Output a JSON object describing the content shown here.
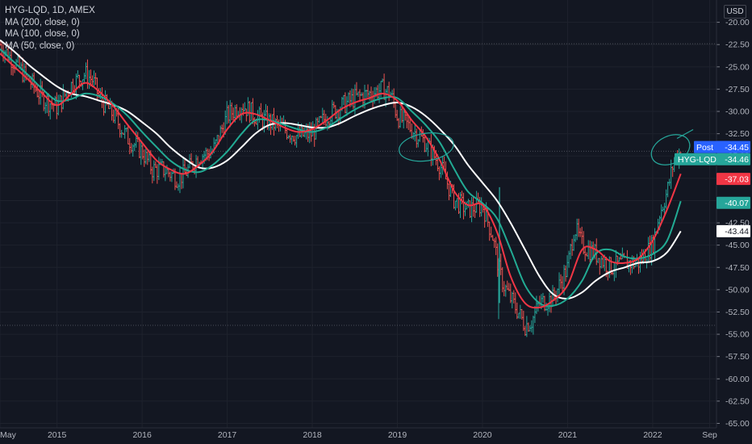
{
  "header": {
    "symbol_line": "HYG-LQD, 1D, AMEX",
    "indicators": [
      "MA (200, close, 0)",
      "MA (100, close, 0)",
      "MA (50, close, 0)"
    ]
  },
  "currency": "USD",
  "price_tags": {
    "post": {
      "label": "Post",
      "value": "-34.45",
      "color": "#2962ff"
    },
    "symbol": {
      "label": "HYG-LQD",
      "value": "-34.46",
      "color": "#26a69a"
    },
    "ma50": {
      "value": "-37.03",
      "color": "#f23645"
    },
    "ma100": {
      "value": "-40.07",
      "color": "#26a69a"
    },
    "ma200": {
      "value": "-43.44",
      "color": "#ffffff"
    }
  },
  "colors": {
    "up": "#26a69a",
    "down": "#ef5350",
    "ma50": "#f23645",
    "ma100": "#22ab94",
    "ma200": "#ffffff",
    "annotation": "#26a69a",
    "background": "#131722",
    "grid": "#1e222d"
  },
  "chart_data": {
    "type": "line",
    "title": "HYG-LQD, 1D, AMEX",
    "xlabel": "",
    "ylabel": "",
    "x_ticks": [
      "May",
      "2015",
      "2016",
      "2017",
      "2018",
      "2019",
      "2020",
      "2021",
      "2022",
      "Sep"
    ],
    "y_ticks": [
      "-20.00",
      "-22.50",
      "-25.00",
      "-27.50",
      "-30.00",
      "-32.50",
      "-35.00",
      "-37.50",
      "-40.00",
      "-42.50",
      "-45.00",
      "-47.50",
      "-50.00",
      "-52.50",
      "-55.00",
      "-57.50",
      "-60.00",
      "-62.50",
      "-65.00"
    ],
    "ylim": [
      -65.5,
      -17.5
    ],
    "xlim": [
      2014.33,
      2022.75
    ],
    "grid": true,
    "legend": "top-left",
    "horizontal_levels": [
      -22.4,
      -34.46,
      -54.0
    ],
    "series": [
      {
        "name": "HYG-LQD",
        "style": "ohlc",
        "x": [
          2014.33,
          2014.5,
          2014.67,
          2014.83,
          2015.0,
          2015.17,
          2015.33,
          2015.42,
          2015.5,
          2015.67,
          2015.83,
          2016.0,
          2016.12,
          2016.25,
          2016.42,
          2016.5,
          2016.67,
          2016.83,
          2017.0,
          2017.17,
          2017.33,
          2017.5,
          2017.67,
          2017.83,
          2018.0,
          2018.17,
          2018.33,
          2018.5,
          2018.67,
          2018.83,
          2018.92,
          2019.0,
          2019.17,
          2019.33,
          2019.5,
          2019.67,
          2019.83,
          2020.0,
          2020.12,
          2020.2,
          2020.25,
          2020.33,
          2020.42,
          2020.5,
          2020.58,
          2020.67,
          2020.83,
          2021.0,
          2021.08,
          2021.17,
          2021.33,
          2021.5,
          2021.67,
          2021.83,
          2022.0,
          2022.08,
          2022.17,
          2022.25,
          2022.33
        ],
        "y": [
          -22.5,
          -24.5,
          -26.5,
          -28.5,
          -29.5,
          -27.0,
          -25.8,
          -26.5,
          -28.5,
          -30.5,
          -33.0,
          -34.5,
          -36.5,
          -36.5,
          -37.5,
          -37.0,
          -35.0,
          -34.5,
          -30.5,
          -29.2,
          -30.5,
          -31.2,
          -32.0,
          -32.8,
          -32.5,
          -30.5,
          -29.5,
          -28.5,
          -28.0,
          -27.5,
          -28.0,
          -30.5,
          -32.0,
          -33.5,
          -36.0,
          -40.0,
          -41.0,
          -40.5,
          -44.0,
          -48.0,
          -49.5,
          -51.0,
          -52.5,
          -54.0,
          -53.5,
          -51.5,
          -51.0,
          -47.5,
          -43.0,
          -45.0,
          -46.0,
          -47.5,
          -47.0,
          -47.0,
          -45.0,
          -41.5,
          -39.0,
          -35.5,
          -34.46
        ]
      },
      {
        "name": "MA (50, close, 0)",
        "x": [
          2014.33,
          2014.5,
          2014.67,
          2014.83,
          2015.0,
          2015.17,
          2015.33,
          2015.5,
          2015.67,
          2015.83,
          2016.0,
          2016.17,
          2016.33,
          2016.5,
          2016.67,
          2016.83,
          2017.0,
          2017.17,
          2017.33,
          2017.5,
          2017.67,
          2017.83,
          2018.0,
          2018.17,
          2018.33,
          2018.5,
          2018.67,
          2018.83,
          2019.0,
          2019.17,
          2019.33,
          2019.5,
          2019.67,
          2019.83,
          2020.0,
          2020.17,
          2020.33,
          2020.5,
          2020.67,
          2020.83,
          2021.0,
          2021.17,
          2021.33,
          2021.5,
          2021.67,
          2021.83,
          2022.0,
          2022.17,
          2022.33
        ],
        "y": [
          -23.5,
          -25.0,
          -26.5,
          -28.0,
          -29.3,
          -28.0,
          -26.8,
          -27.8,
          -29.5,
          -31.5,
          -33.5,
          -35.5,
          -36.5,
          -37.0,
          -36.0,
          -34.5,
          -32.0,
          -30.3,
          -30.3,
          -31.0,
          -31.8,
          -32.3,
          -32.0,
          -31.0,
          -29.8,
          -29.0,
          -28.5,
          -28.0,
          -28.8,
          -31.0,
          -32.8,
          -35.5,
          -39.0,
          -40.5,
          -40.5,
          -43.5,
          -48.5,
          -51.5,
          -52.0,
          -51.2,
          -49.5,
          -45.5,
          -45.5,
          -46.8,
          -47.0,
          -46.5,
          -44.5,
          -41.0,
          -37.0
        ]
      },
      {
        "name": "MA (100, close, 0)",
        "x": [
          2014.33,
          2014.5,
          2014.67,
          2014.83,
          2015.0,
          2015.17,
          2015.33,
          2015.5,
          2015.67,
          2015.83,
          2016.0,
          2016.17,
          2016.33,
          2016.5,
          2016.67,
          2016.83,
          2017.0,
          2017.17,
          2017.33,
          2017.5,
          2017.67,
          2017.83,
          2018.0,
          2018.17,
          2018.33,
          2018.5,
          2018.67,
          2018.83,
          2019.0,
          2019.17,
          2019.33,
          2019.5,
          2019.67,
          2019.83,
          2020.0,
          2020.17,
          2020.33,
          2020.5,
          2020.67,
          2020.83,
          2021.0,
          2021.17,
          2021.33,
          2021.5,
          2021.67,
          2021.83,
          2022.0,
          2022.17,
          2022.33
        ],
        "y": [
          -23.0,
          -24.5,
          -26.0,
          -27.5,
          -28.8,
          -28.6,
          -28.0,
          -28.3,
          -29.2,
          -30.5,
          -32.3,
          -34.0,
          -35.5,
          -36.5,
          -36.8,
          -36.0,
          -34.5,
          -32.5,
          -31.0,
          -31.0,
          -31.5,
          -32.0,
          -32.3,
          -31.8,
          -30.8,
          -29.8,
          -29.0,
          -28.5,
          -28.5,
          -30.0,
          -31.5,
          -33.5,
          -36.5,
          -39.0,
          -40.3,
          -42.0,
          -45.5,
          -49.5,
          -51.5,
          -51.8,
          -51.0,
          -49.0,
          -46.0,
          -45.5,
          -46.3,
          -46.5,
          -46.0,
          -44.5,
          -40.07
        ]
      },
      {
        "name": "MA (200, close, 0)",
        "x": [
          2014.33,
          2014.5,
          2014.67,
          2014.83,
          2015.0,
          2015.17,
          2015.33,
          2015.5,
          2015.67,
          2015.83,
          2016.0,
          2016.17,
          2016.33,
          2016.5,
          2016.67,
          2016.83,
          2017.0,
          2017.17,
          2017.33,
          2017.5,
          2017.67,
          2017.83,
          2018.0,
          2018.17,
          2018.33,
          2018.5,
          2018.67,
          2018.83,
          2019.0,
          2019.17,
          2019.33,
          2019.5,
          2019.67,
          2019.83,
          2020.0,
          2020.17,
          2020.33,
          2020.5,
          2020.67,
          2020.83,
          2021.0,
          2021.17,
          2021.33,
          2021.5,
          2021.67,
          2021.83,
          2022.0,
          2022.17,
          2022.33
        ],
        "y": [
          -22.0,
          -23.3,
          -24.8,
          -26.0,
          -27.2,
          -28.0,
          -28.3,
          -28.8,
          -29.3,
          -30.0,
          -31.2,
          -32.5,
          -34.0,
          -35.3,
          -36.3,
          -36.3,
          -35.5,
          -34.0,
          -32.5,
          -31.5,
          -31.3,
          -31.5,
          -31.8,
          -31.8,
          -31.3,
          -30.5,
          -29.8,
          -29.3,
          -29.0,
          -29.5,
          -30.5,
          -32.0,
          -33.8,
          -36.0,
          -38.0,
          -40.0,
          -42.5,
          -45.5,
          -48.5,
          -50.5,
          -51.0,
          -50.3,
          -49.0,
          -48.0,
          -47.5,
          -47.0,
          -46.8,
          -45.8,
          -43.44
        ]
      }
    ],
    "annotations": [
      {
        "type": "ellipse",
        "x": 2019.34,
        "y": -34.0
      },
      {
        "type": "ellipse",
        "x": 2022.21,
        "y": -34.3
      }
    ]
  }
}
